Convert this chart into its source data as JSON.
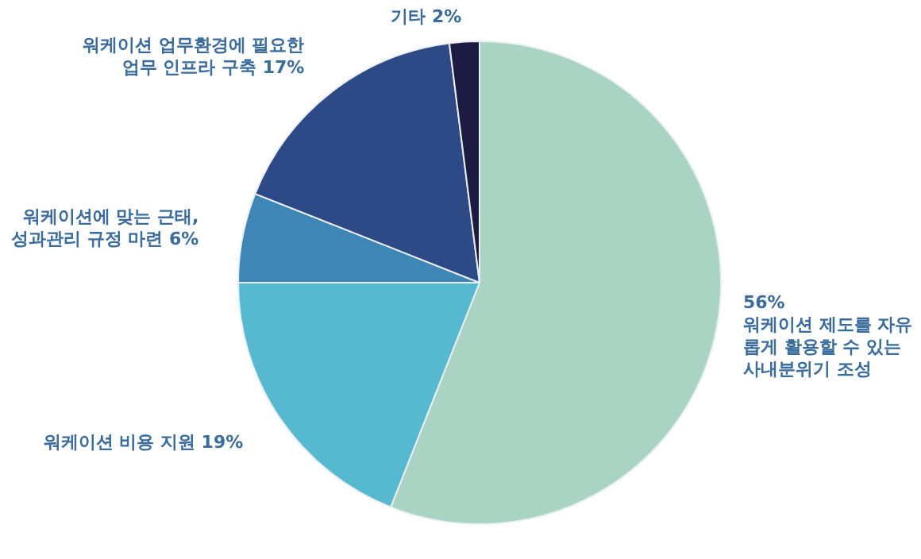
{
  "chart_data": {
    "type": "pie",
    "categories": [
      "워케이션 제도를 자유롭게 활용할 수 있는 사내분위기 조성",
      "워케이션 비용 지원",
      "워케이션에 맞는 근태, 성과관리 규정 마련",
      "워케이션 업무환경에 필요한 업무 인프라 구축",
      "기타"
    ],
    "values": [
      56,
      19,
      6,
      17,
      2
    ],
    "value_labels": [
      "56%",
      "19%",
      "6%",
      "17%",
      "2%"
    ],
    "colors": [
      "#a9d4c3",
      "#57b9d0",
      "#3e86b6",
      "#2e4a86",
      "#1d1b42"
    ]
  }
}
